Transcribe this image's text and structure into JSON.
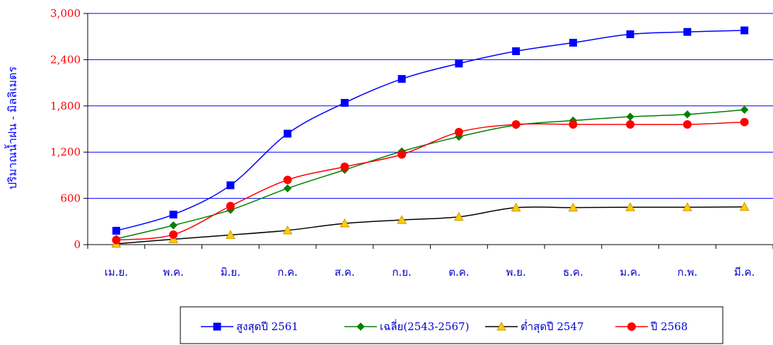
{
  "chart_data": {
    "type": "line",
    "title": "",
    "ylabel": "ปริมาณน้ำฝน - มิลลิเมตร",
    "xlabel": "",
    "categories": [
      "เม.ย.",
      "พ.ค.",
      "มิ.ย.",
      "ก.ค.",
      "ส.ค.",
      "ก.ย.",
      "ต.ค.",
      "พ.ย.",
      "ธ.ค.",
      "ม.ค.",
      "ก.พ.",
      "มี.ค."
    ],
    "yticks": [
      "0",
      "600",
      "1,200",
      "1,800",
      "2,400",
      "3,000"
    ],
    "ylim": [
      0,
      3000
    ],
    "grid": true,
    "legend_position": "bottom",
    "series": [
      {
        "name": "สูงสุดปี 2561",
        "color": "#0000ff",
        "marker": "square",
        "values": [
          180,
          390,
          770,
          1440,
          1840,
          2150,
          2350,
          2510,
          2620,
          2730,
          2760,
          2780
        ]
      },
      {
        "name": "เฉลี่ย(2543-2567)",
        "color": "#008000",
        "marker": "diamond",
        "values": [
          75,
          250,
          450,
          730,
          970,
          1210,
          1400,
          1550,
          1610,
          1660,
          1690,
          1750
        ]
      },
      {
        "name": "ต่ำสุดปี 2547",
        "color": "#000000",
        "marker": "triangle",
        "values": [
          10,
          70,
          125,
          185,
          275,
          320,
          360,
          480,
          480,
          485,
          485,
          490
        ]
      },
      {
        "name": "ปี 2568",
        "color": "#ff0000",
        "marker": "circle",
        "values": [
          60,
          130,
          500,
          840,
          1010,
          1170,
          1460,
          1560,
          1560,
          1560,
          1560,
          1590
        ]
      }
    ]
  }
}
